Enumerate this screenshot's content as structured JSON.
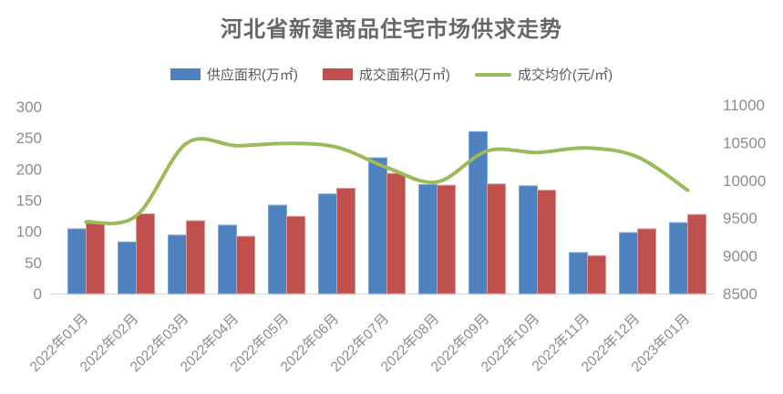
{
  "chart_data": {
    "type": "bar+line",
    "title": "河北省新建商品住宅市场供求走势",
    "categories": [
      "2022年01月",
      "2022年02月",
      "2022年03月",
      "2022年04月",
      "2022年05月",
      "2022年06月",
      "2022年07月",
      "2022年08月",
      "2022年09月",
      "2022年10月",
      "2022年11月",
      "2022年12月",
      "2023年01月"
    ],
    "series": [
      {
        "name": "供应面积(万㎡)",
        "type": "bar",
        "axis": "left",
        "color": "#4e81bd",
        "edge_color": "#7da7d8",
        "values": [
          104,
          83,
          94,
          110,
          142,
          160,
          218,
          175,
          260,
          173,
          66,
          98,
          114
        ]
      },
      {
        "name": "成交面积(万㎡)",
        "type": "bar",
        "axis": "left",
        "color": "#c0504d",
        "edge_color": "#d99694",
        "values": [
          113,
          128,
          117,
          92,
          124,
          169,
          193,
          174,
          176,
          166,
          61,
          104,
          127
        ]
      },
      {
        "name": "成交均价(元/㎡)",
        "type": "line",
        "axis": "right",
        "color": "#9bbb59",
        "values": [
          9450,
          9530,
          10490,
          10460,
          10490,
          10440,
          10170,
          9980,
          10390,
          10370,
          10430,
          10310,
          9870
        ]
      }
    ],
    "left_axis": {
      "min": 0,
      "max": 300,
      "step": 50,
      "ticks": [
        0,
        50,
        100,
        150,
        200,
        250,
        300
      ]
    },
    "right_axis": {
      "min": 8500,
      "max": 11000,
      "step": 500,
      "ticks": [
        8500,
        9000,
        9500,
        10000,
        10500,
        11000
      ]
    },
    "grid": false,
    "legend_position": "top",
    "line_smooth": true,
    "colors": {
      "title_text": "#666666",
      "legend_text": "#595959",
      "axis_text": "#8c8c8c",
      "baseline": "#d9d9d9",
      "background": "#ffffff"
    }
  }
}
